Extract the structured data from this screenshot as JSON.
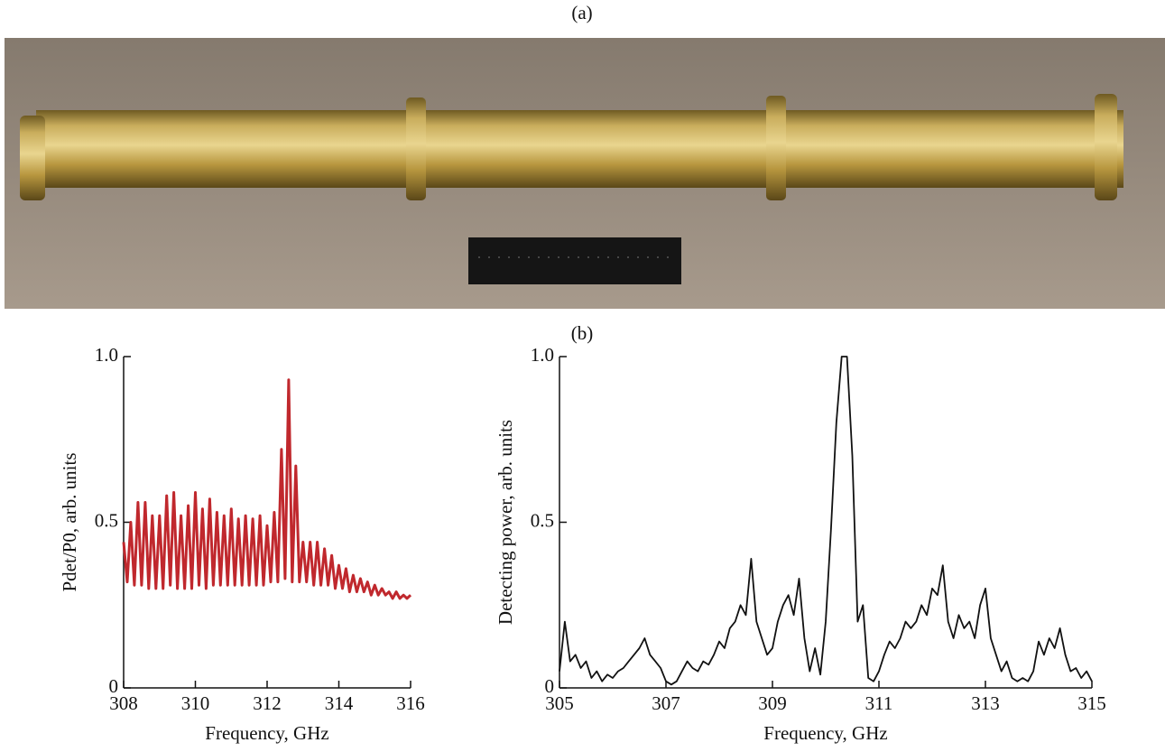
{
  "panel_labels": [
    "(a)",
    "(b)"
  ],
  "chart_data": [
    {
      "type": "line",
      "xlabel": "Frequency, GHz",
      "ylabel": "Pdet/P0, arb. units",
      "xlim": [
        308,
        316
      ],
      "xticks": [
        308,
        310,
        312,
        314,
        316
      ],
      "ylim": [
        0,
        1
      ],
      "yticks": [
        0,
        0.5,
        {
          "value": 1,
          "label": "1.0"
        }
      ],
      "series": [
        {
          "color": "#c0282d",
          "x": [
            308.0,
            308.1,
            308.2,
            308.3,
            308.4,
            308.5,
            308.6,
            308.7,
            308.8,
            308.9,
            309.0,
            309.1,
            309.2,
            309.3,
            309.4,
            309.5,
            309.6,
            309.7,
            309.8,
            309.9,
            310.0,
            310.1,
            310.2,
            310.3,
            310.4,
            310.5,
            310.6,
            310.7,
            310.8,
            310.9,
            311.0,
            311.1,
            311.2,
            311.3,
            311.4,
            311.5,
            311.6,
            311.7,
            311.8,
            311.9,
            312.0,
            312.1,
            312.2,
            312.3,
            312.4,
            312.5,
            312.6,
            312.7,
            312.8,
            312.9,
            313.0,
            313.1,
            313.2,
            313.3,
            313.4,
            313.5,
            313.6,
            313.7,
            313.8,
            313.9,
            314.0,
            314.1,
            314.2,
            314.3,
            314.4,
            314.5,
            314.6,
            314.7,
            314.8,
            314.9,
            315.0,
            315.1,
            315.2,
            315.3,
            315.4,
            315.5,
            315.6,
            315.7,
            315.8,
            315.9,
            316.0
          ],
          "values": [
            0.44,
            0.32,
            0.5,
            0.31,
            0.56,
            0.31,
            0.56,
            0.3,
            0.52,
            0.3,
            0.52,
            0.3,
            0.58,
            0.31,
            0.59,
            0.3,
            0.52,
            0.3,
            0.55,
            0.3,
            0.59,
            0.31,
            0.54,
            0.3,
            0.57,
            0.31,
            0.53,
            0.31,
            0.52,
            0.31,
            0.54,
            0.31,
            0.51,
            0.31,
            0.52,
            0.31,
            0.51,
            0.31,
            0.52,
            0.31,
            0.49,
            0.32,
            0.53,
            0.32,
            0.72,
            0.33,
            0.93,
            0.32,
            0.67,
            0.32,
            0.44,
            0.32,
            0.44,
            0.31,
            0.44,
            0.31,
            0.42,
            0.31,
            0.4,
            0.3,
            0.37,
            0.3,
            0.36,
            0.29,
            0.34,
            0.29,
            0.33,
            0.29,
            0.32,
            0.28,
            0.31,
            0.28,
            0.3,
            0.28,
            0.29,
            0.27,
            0.29,
            0.27,
            0.28,
            0.27,
            0.28
          ]
        }
      ]
    },
    {
      "type": "line",
      "xlabel": "Frequency, GHz",
      "ylabel": "Detecting power, arb. units",
      "xlim": [
        305,
        315
      ],
      "xticks": [
        305,
        307,
        309,
        311,
        313,
        315
      ],
      "ylim": [
        0,
        1
      ],
      "yticks": [
        0,
        0.5,
        {
          "value": 1,
          "label": "1.0"
        }
      ],
      "series": [
        {
          "color": "#111111",
          "x": [
            305.0,
            305.1,
            305.2,
            305.3,
            305.4,
            305.5,
            305.6,
            305.7,
            305.8,
            305.9,
            306.0,
            306.1,
            306.2,
            306.3,
            306.4,
            306.5,
            306.6,
            306.7,
            306.8,
            306.9,
            307.0,
            307.1,
            307.2,
            307.3,
            307.4,
            307.5,
            307.6,
            307.7,
            307.8,
            307.9,
            308.0,
            308.1,
            308.2,
            308.3,
            308.4,
            308.5,
            308.6,
            308.7,
            308.8,
            308.9,
            309.0,
            309.1,
            309.2,
            309.3,
            309.4,
            309.5,
            309.6,
            309.7,
            309.8,
            309.9,
            310.0,
            310.1,
            310.2,
            310.3,
            310.4,
            310.5,
            310.6,
            310.7,
            310.8,
            310.9,
            311.0,
            311.1,
            311.2,
            311.3,
            311.4,
            311.5,
            311.6,
            311.7,
            311.8,
            311.9,
            312.0,
            312.1,
            312.2,
            312.3,
            312.4,
            312.5,
            312.6,
            312.7,
            312.8,
            312.9,
            313.0,
            313.1,
            313.2,
            313.3,
            313.4,
            313.5,
            313.6,
            313.7,
            313.8,
            313.9,
            314.0,
            314.1,
            314.2,
            314.3,
            314.4,
            314.5,
            314.6,
            314.7,
            314.8,
            314.9,
            315.0
          ],
          "values": [
            0.05,
            0.2,
            0.08,
            0.1,
            0.06,
            0.08,
            0.03,
            0.05,
            0.02,
            0.04,
            0.03,
            0.05,
            0.06,
            0.08,
            0.1,
            0.12,
            0.15,
            0.1,
            0.08,
            0.06,
            0.02,
            0.01,
            0.02,
            0.05,
            0.08,
            0.06,
            0.05,
            0.08,
            0.07,
            0.1,
            0.14,
            0.12,
            0.18,
            0.2,
            0.25,
            0.22,
            0.39,
            0.2,
            0.15,
            0.1,
            0.12,
            0.2,
            0.25,
            0.28,
            0.22,
            0.33,
            0.15,
            0.05,
            0.12,
            0.04,
            0.2,
            0.48,
            0.8,
            1.0,
            1.0,
            0.7,
            0.2,
            0.25,
            0.03,
            0.02,
            0.05,
            0.1,
            0.14,
            0.12,
            0.15,
            0.2,
            0.18,
            0.2,
            0.25,
            0.22,
            0.3,
            0.28,
            0.37,
            0.2,
            0.15,
            0.22,
            0.18,
            0.2,
            0.15,
            0.25,
            0.3,
            0.15,
            0.1,
            0.05,
            0.08,
            0.03,
            0.02,
            0.03,
            0.02,
            0.05,
            0.14,
            0.1,
            0.15,
            0.12,
            0.18,
            0.1,
            0.05,
            0.06,
            0.03,
            0.05,
            0.02
          ]
        }
      ]
    }
  ]
}
